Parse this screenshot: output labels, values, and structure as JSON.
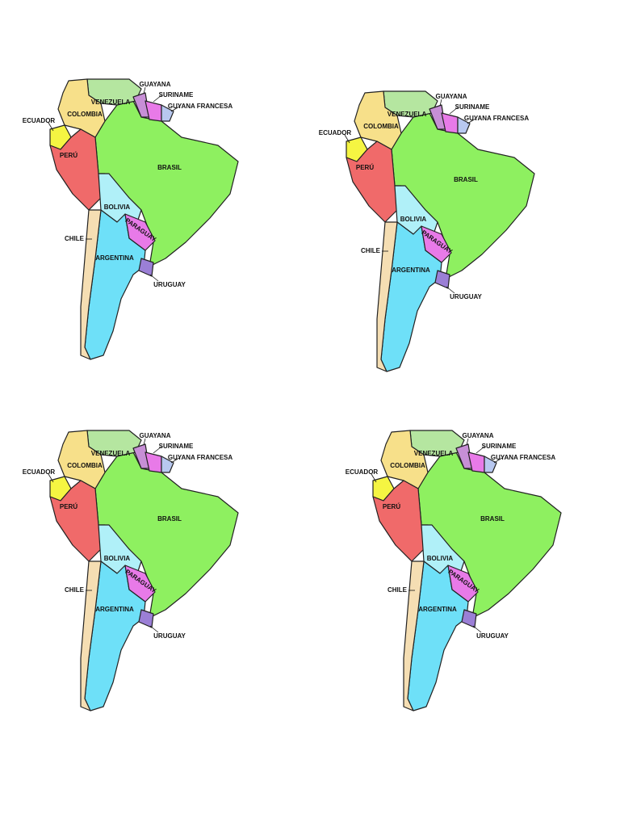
{
  "maps": [
    {
      "labels": {
        "venezuela": "VENEZUELA",
        "guayana": "GUAYANA",
        "suriname": "SURINAME",
        "guyana_francesa": "GUYANA FRANCESA",
        "colombia": "COLOMBIA",
        "ecuador": "ECUADOR",
        "peru": "PERÚ",
        "brasil": "BRASIL",
        "bolivia": "BOLIVIA",
        "paraguay": "PARAGUAY",
        "chile": "CHILE",
        "argentina": "ARGENTINA",
        "uruguay": "URUGUAY"
      }
    },
    {
      "labels": {
        "venezuela": "VENEZUELA",
        "guayana": "GUAYANA",
        "suriname": "SURINAME",
        "guyana_francesa": "GUYANA FRANCESA",
        "colombia": "COLOMBIA",
        "ecuador": "ECUADOR",
        "peru": "PERÚ",
        "brasil": "BRASIL",
        "bolivia": "BOLIVIA",
        "paraguay": "PARAGUAY",
        "chile": "CHILE",
        "argentina": "ARGENTINA",
        "uruguay": "URUGUAY"
      }
    },
    {
      "labels": {
        "venezuela": "VENEZUELA",
        "guayana": "GUAYANA",
        "suriname": "SURINAME",
        "guyana_francesa": "GUYANA FRANCESA",
        "colombia": "COLOMBIA",
        "ecuador": "ECUADOR",
        "peru": "PERÚ",
        "brasil": "BRASIL",
        "bolivia": "BOLIVIA",
        "paraguay": "PARAGUAY",
        "chile": "CHILE",
        "argentina": "ARGENTINA",
        "uruguay": "URUGUAY"
      }
    },
    {
      "labels": {
        "venezuela": "VENEZUELA",
        "guayana": "GUAYANA",
        "suriname": "SURINAME",
        "guyana_francesa": "GUYANA FRANCESA",
        "colombia": "COLOMBIA",
        "ecuador": "ECUADOR",
        "peru": "PERÚ",
        "brasil": "BRASIL",
        "bolivia": "BOLIVIA",
        "paraguay": "PARAGUAY",
        "chile": "CHILE",
        "argentina": "ARGENTINA",
        "uruguay": "URUGUAY"
      }
    }
  ]
}
